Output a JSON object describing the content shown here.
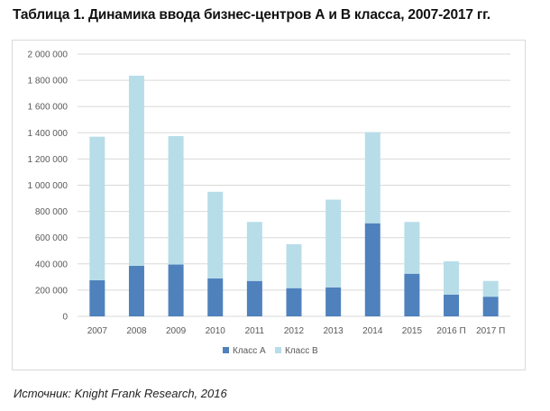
{
  "title": "Таблица 1. Динамика ввода бизнес-центров А и В класса, 2007-2017 гг.",
  "source": "Источник: Knight Frank Research, 2016",
  "colors": {
    "class_a": "#4f81bd",
    "class_b": "#b7dde8",
    "grid": "#d9d9d9",
    "text": "#595959"
  },
  "chart_data": {
    "type": "bar",
    "stacked": true,
    "title": "",
    "xlabel": "",
    "ylabel": "",
    "categories": [
      "2007",
      "2008",
      "2009",
      "2010",
      "2011",
      "2012",
      "2013",
      "2014",
      "2015",
      "2016 П",
      "2017 П"
    ],
    "series": [
      {
        "name": "Класс А",
        "values": [
          275000,
          385000,
          395000,
          290000,
          270000,
          215000,
          220000,
          710000,
          325000,
          165000,
          150000
        ]
      },
      {
        "name": "Класс В",
        "values": [
          1095000,
          1450000,
          980000,
          660000,
          450000,
          335000,
          670000,
          695000,
          395000,
          255000,
          120000
        ]
      }
    ],
    "ylim": [
      0,
      2000000
    ],
    "yticks": [
      0,
      200000,
      400000,
      600000,
      800000,
      1000000,
      1200000,
      1400000,
      1600000,
      1800000,
      2000000
    ],
    "ytick_labels": [
      "0",
      "200 000",
      "400 000",
      "600 000",
      "800 000",
      "1 000 000",
      "1 200 000",
      "1 400 000",
      "1 600 000",
      "1 800 000",
      "2 000 000"
    ],
    "grid": true,
    "legend": "bottom"
  }
}
